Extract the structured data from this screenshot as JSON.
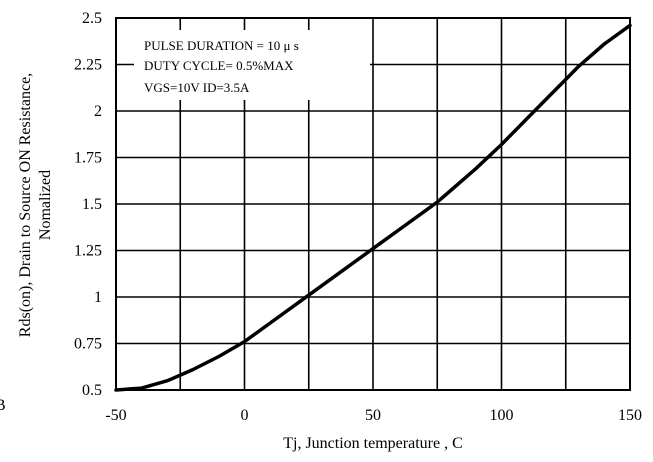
{
  "chart_data": {
    "type": "line",
    "xlabel": "Tj, Junction temperature , C",
    "ylabel_lines": [
      "Rds(on), Drain to Source ON  Resistance,",
      "Nomalized"
    ],
    "xlim": [
      -50,
      150
    ],
    "ylim": [
      0.5,
      2.5
    ],
    "x_ticks": [
      -50,
      0,
      50,
      100,
      150
    ],
    "x_tick_labels": [
      "-50",
      "0",
      "50",
      "100",
      "150"
    ],
    "x_grid": [
      -50,
      -25,
      0,
      25,
      50,
      75,
      100,
      125,
      150
    ],
    "y_ticks": [
      0.5,
      0.75,
      1,
      1.25,
      1.5,
      1.75,
      2,
      2.25,
      2.5
    ],
    "y_tick_labels": [
      "0.5",
      "0.75",
      "1",
      "1.25",
      "1.5",
      "1.75",
      "2",
      "2.25",
      "2.5"
    ],
    "grid": true,
    "annotations": [
      "PULSE   DURATION = 10 μ s",
      "DUTY   CYCLE= 0.5%MAX",
      "VGS=10V   ID=3.5A"
    ],
    "series": [
      {
        "x": [
          -50,
          -40,
          -30,
          -25,
          -20,
          -10,
          0,
          10,
          20,
          25,
          30,
          40,
          50,
          60,
          70,
          75,
          80,
          90,
          100,
          110,
          120,
          125,
          130,
          140,
          150
        ],
        "y": [
          0.5,
          0.51,
          0.55,
          0.58,
          0.61,
          0.68,
          0.76,
          0.86,
          0.96,
          1.01,
          1.06,
          1.16,
          1.26,
          1.36,
          1.46,
          1.51,
          1.57,
          1.69,
          1.82,
          1.96,
          2.1,
          2.17,
          2.24,
          2.36,
          2.46
        ]
      }
    ]
  },
  "stray_glyph": "B"
}
